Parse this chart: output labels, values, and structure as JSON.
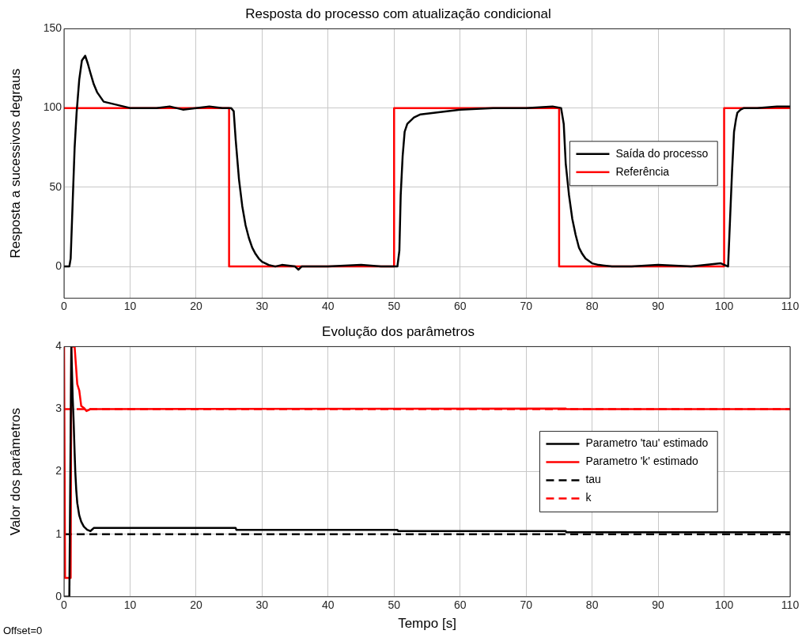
{
  "chart_data": [
    {
      "type": "line",
      "title": "Resposta do processo com atualização condicional",
      "ylabel": "Resposta a sucessivos degraus",
      "xlim": [
        0,
        110
      ],
      "xticks": [
        0,
        10,
        20,
        30,
        40,
        50,
        60,
        70,
        80,
        90,
        100,
        110
      ],
      "ylim": [
        -20,
        150
      ],
      "yticks": [
        0,
        50,
        100,
        150
      ],
      "grid": true,
      "legend": "right",
      "marker": "none",
      "series": [
        {
          "name": "Saída do processo",
          "color": "#000000",
          "line_style": "solid",
          "x": [
            0,
            0.8,
            1.0,
            1.3,
            1.6,
            1.9,
            2.3,
            2.7,
            3.2,
            3.6,
            4,
            4.5,
            5,
            6,
            7,
            8,
            9,
            10,
            12,
            14,
            16,
            18,
            20,
            22,
            24,
            25.3,
            25.7,
            26,
            26.5,
            27,
            27.5,
            28,
            28.5,
            29,
            29.5,
            30,
            31,
            32,
            33,
            35,
            35.5,
            36,
            40,
            45,
            48,
            50.5,
            50.8,
            51,
            51.3,
            51.6,
            52,
            53,
            54,
            56,
            58,
            60,
            65,
            70,
            74,
            75.3,
            75.7,
            76,
            76.5,
            77,
            77.5,
            78,
            78.5,
            79,
            80,
            81,
            83,
            86,
            90,
            95,
            99.5,
            100.6,
            100.9,
            101.2,
            101.5,
            101.8,
            102,
            102.5,
            103,
            105,
            108,
            110
          ],
          "values": [
            0,
            0,
            5,
            40,
            75,
            97,
            118,
            130,
            133,
            128,
            122,
            115,
            110,
            104,
            103,
            102,
            101,
            100,
            100,
            100,
            101,
            99,
            100,
            101,
            100,
            100,
            98,
            80,
            55,
            38,
            26,
            18,
            12,
            8,
            5,
            3,
            1,
            0,
            1,
            0,
            -2,
            0,
            0,
            1,
            0,
            0,
            10,
            45,
            70,
            85,
            90,
            94,
            96,
            97,
            98,
            99,
            100,
            100,
            101,
            100,
            90,
            65,
            45,
            30,
            20,
            12,
            8,
            5,
            2,
            1,
            0,
            0,
            1,
            0,
            2,
            0,
            30,
            60,
            85,
            93,
            97,
            99,
            100,
            100,
            101,
            101
          ]
        },
        {
          "name": "Referência",
          "color": "#ff0000",
          "type": "step",
          "line_style": "solid",
          "x": [
            0,
            25,
            50,
            75,
            100,
            110
          ],
          "values": [
            100,
            0,
            100,
            0,
            100,
            100
          ]
        }
      ]
    },
    {
      "type": "line",
      "title": "Evolução dos parâmetros",
      "xlabel": "Tempo [s]",
      "ylabel": "Valor dos parâmetros",
      "xlim": [
        0,
        110
      ],
      "xticks": [
        0,
        10,
        20,
        30,
        40,
        50,
        60,
        70,
        80,
        90,
        100,
        110
      ],
      "ylim": [
        0,
        4
      ],
      "yticks": [
        0,
        1,
        2,
        3,
        4
      ],
      "grid": true,
      "legend": "right",
      "marker": "none",
      "annotations": [
        "Offset=0"
      ],
      "series": [
        {
          "name": "Parametro 'tau' estimado",
          "color": "#000000",
          "line_style": "solid",
          "x": [
            0,
            0.8,
            1.1,
            1.3,
            1.45,
            1.6,
            1.7,
            1.85,
            2.0,
            2.3,
            2.6,
            3.0,
            3.5,
            4.0,
            4.5,
            26,
            26.1,
            50.5,
            50.6,
            76,
            76.1,
            110
          ],
          "values": [
            0,
            0,
            4,
            3.2,
            2.8,
            2.3,
            2.0,
            1.7,
            1.5,
            1.3,
            1.2,
            1.12,
            1.07,
            1.05,
            1.1,
            1.1,
            1.07,
            1.07,
            1.05,
            1.05,
            1.03,
            1.03
          ]
        },
        {
          "name": "Parametro 'k' estimado",
          "color": "#ff0000",
          "line_style": "solid",
          "x": [
            0,
            0.1,
            0.15,
            1.0,
            1.1,
            1.6,
            1.8,
            2.0,
            2.3,
            2.6,
            3.0,
            3.4,
            4,
            76,
            76.1,
            110
          ],
          "values": [
            4,
            4,
            0.3,
            0.3,
            4,
            4,
            3.7,
            3.4,
            3.3,
            3.05,
            3.02,
            2.97,
            3.0,
            3.01,
            3.0,
            3.0
          ]
        },
        {
          "name": "tau",
          "color": "#000000",
          "line_style": "dashed",
          "x": [
            0,
            110
          ],
          "values": [
            1,
            1
          ]
        },
        {
          "name": "k",
          "color": "#ff0000",
          "line_style": "dashed",
          "x": [
            0,
            110
          ],
          "values": [
            3,
            3
          ]
        }
      ]
    }
  ]
}
